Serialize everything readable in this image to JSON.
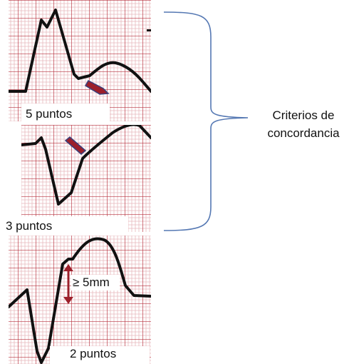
{
  "panels": [
    {
      "score_label": "5 puntos"
    },
    {
      "score_label": "3 puntos"
    },
    {
      "score_label": "2 puntos",
      "measure_label": "≥ 5mm"
    }
  ],
  "bracket_label": {
    "line1": "Criterios de",
    "line2": "concordancia"
  },
  "colors": {
    "grid_major": "#b8323f",
    "grid_minor": "#e7b9bd",
    "trace": "#111111",
    "arrow_fill": "#9c1f2a",
    "arrow_edge": "#3b3f7a",
    "bracket": "#5578b3"
  }
}
